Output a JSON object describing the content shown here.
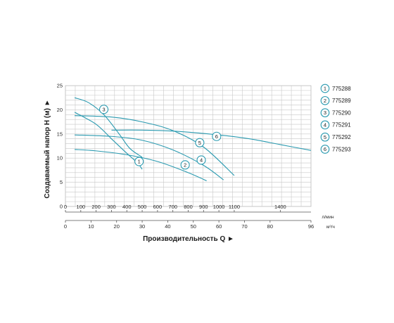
{
  "chart_data": {
    "type": "line",
    "xlabel": "Производительность Q ►",
    "ylabel": "Создаваемый напор H (м) ►",
    "x_unit_primary": "л/мин",
    "x_unit_secondary": "м³/ч",
    "xlim": [
      0,
      1600
    ],
    "ylim": [
      0,
      25
    ],
    "x_ticks_primary": [
      0,
      100,
      200,
      300,
      400,
      500,
      600,
      700,
      800,
      900,
      1000,
      1100,
      1400
    ],
    "x_ticks_secondary": [
      0,
      10,
      20,
      30,
      40,
      50,
      60,
      70,
      80,
      96
    ],
    "y_ticks": [
      0,
      5,
      10,
      15,
      20,
      25
    ],
    "grid": true,
    "series_color": "#2a9ab0",
    "series": [
      {
        "name": "775288",
        "label": "1",
        "x": [
          60,
          200,
          300,
          400,
          470,
          500
        ],
        "y": [
          19.5,
          17,
          14,
          11,
          9,
          7.7
        ]
      },
      {
        "name": "775289",
        "label": "2",
        "x": [
          60,
          200,
          400,
          600,
          800,
          920
        ],
        "y": [
          11.8,
          11.5,
          10.7,
          9.3,
          7,
          5.3
        ]
      },
      {
        "name": "775290",
        "label": "3",
        "x": [
          60,
          150,
          250,
          350,
          420,
          500
        ],
        "y": [
          22.5,
          21.5,
          19,
          15,
          12,
          10.2
        ]
      },
      {
        "name": "775291",
        "label": "4",
        "x": [
          60,
          300,
          500,
          700,
          900,
          1030
        ],
        "y": [
          14.8,
          14.5,
          13.7,
          11.7,
          8.5,
          5.5
        ]
      },
      {
        "name": "775292",
        "label": "5",
        "x": [
          60,
          300,
          500,
          700,
          900,
          1100
        ],
        "y": [
          18.8,
          18.5,
          17.5,
          15.7,
          12.3,
          6.4
        ]
      },
      {
        "name": "775293",
        "label": "6",
        "x": [
          300,
          500,
          700,
          1000,
          1200,
          1400,
          1600
        ],
        "y": [
          15.8,
          15.8,
          15.6,
          14.8,
          14,
          12.8,
          11.6
        ]
      }
    ],
    "annotations": [
      {
        "series": "775288",
        "label": "1",
        "x": 480,
        "y": 9.3
      },
      {
        "series": "775289",
        "label": "2",
        "x": 780,
        "y": 8.6
      },
      {
        "series": "775290",
        "label": "3",
        "x": 250,
        "y": 20.1
      },
      {
        "series": "775291",
        "label": "4",
        "x": 885,
        "y": 9.6
      },
      {
        "series": "775292",
        "label": "5",
        "x": 875,
        "y": 13.2
      },
      {
        "series": "775293",
        "label": "6",
        "x": 985,
        "y": 14.5
      }
    ]
  }
}
